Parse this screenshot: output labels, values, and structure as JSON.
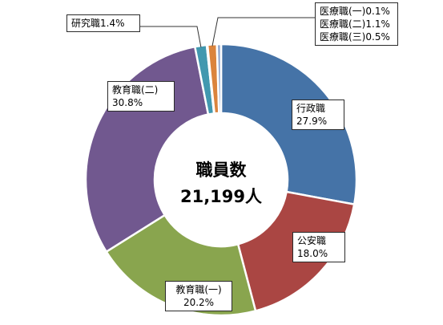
{
  "chart_data": {
    "type": "pie",
    "variant": "donut",
    "center_title": "職員数",
    "center_value": "21,199人",
    "slices": [
      {
        "name": "行政職",
        "value": 27.9,
        "label": "27.9%",
        "color": "#4573a7"
      },
      {
        "name": "公安職",
        "value": 18.0,
        "label": "18.0%",
        "color": "#aa4643"
      },
      {
        "name": "教育職(一)",
        "value": 20.2,
        "label": "20.2%",
        "color": "#89a54e"
      },
      {
        "name": "教育職(二)",
        "value": 30.8,
        "label": "30.8%",
        "color": "#71588f"
      },
      {
        "name": "研究職",
        "value": 1.4,
        "label": "1.4%",
        "color": "#4198af"
      },
      {
        "name": "医療職(一)",
        "value": 0.1,
        "label": "0.1%",
        "color": "#dbe5f1"
      },
      {
        "name": "医療職(二)",
        "value": 1.1,
        "label": "1.1%",
        "color": "#db843d"
      },
      {
        "name": "医療職(三)",
        "value": 0.5,
        "label": "0.5%",
        "color": "#93a9cf"
      }
    ],
    "legend": "none"
  }
}
